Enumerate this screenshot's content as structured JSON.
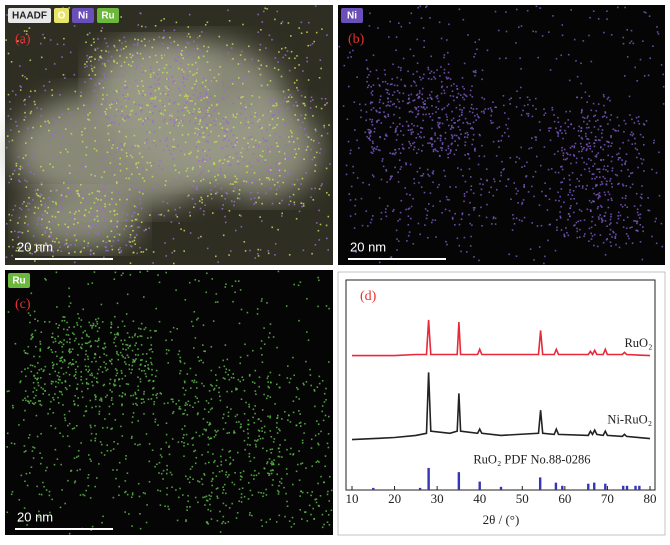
{
  "panels": [
    {
      "label": "(a)",
      "tags": [
        "HAADF",
        "O",
        "Ni",
        "Ru"
      ],
      "scale_bar": "20 nm"
    },
    {
      "label": "(b)",
      "tags": [
        "Ni"
      ],
      "scale_bar": "20 nm"
    },
    {
      "label": "(c)",
      "tags": [
        "Ru"
      ],
      "scale_bar": "20 nm"
    }
  ],
  "chart_data": {
    "type": "line",
    "label": "(d)",
    "xlabel": "2θ / (°)",
    "xlim": [
      10,
      80
    ],
    "xticks": [
      10,
      20,
      30,
      40,
      50,
      60,
      70,
      80
    ],
    "ylim": [
      0,
      100
    ],
    "x": [
      10,
      15,
      20,
      25,
      27.5,
      28,
      28.5,
      33,
      34.7,
      35.1,
      35.5,
      39.5,
      40,
      40.5,
      45,
      53.8,
      54.3,
      54.8,
      57.5,
      58,
      58.5,
      65.5,
      66,
      66.5,
      67,
      67.5,
      69,
      69.5,
      70,
      73.5,
      74,
      74.5,
      80
    ],
    "series": [
      {
        "name": "RuO₂",
        "color": "#e8293a",
        "values": [
          64,
          64,
          64,
          64.5,
          64.5,
          81,
          64.5,
          64.5,
          64.5,
          80,
          64.5,
          64.5,
          67,
          64.5,
          64.5,
          64.5,
          76,
          64.5,
          64.5,
          67,
          64.5,
          64.5,
          66,
          64.5,
          66.5,
          64.5,
          64.5,
          67,
          64.5,
          64.5,
          65.5,
          64.5,
          64
        ]
      },
      {
        "name": "Ni-RuO₂",
        "color": "#222222",
        "values": [
          24,
          24.5,
          25,
          26,
          27,
          56,
          28,
          27,
          28,
          46,
          28,
          27,
          29,
          27,
          26,
          27,
          38,
          27,
          26.5,
          29,
          26.5,
          26,
          28,
          26.5,
          28.5,
          26.5,
          26,
          28,
          26,
          25.5,
          26.5,
          25.5,
          24.5
        ]
      }
    ],
    "reference": {
      "name": "RuO₂ PDF No.88-0286",
      "color": "#3535b5",
      "x": [
        15,
        26,
        28,
        35.1,
        40,
        45,
        54.2,
        57.9,
        59.4,
        65.5,
        66.9,
        69.5,
        73.7,
        74.6,
        76.6,
        77.5
      ],
      "values": [
        1,
        1,
        10.5,
        8.5,
        4,
        1.5,
        6,
        3.5,
        2,
        3,
        3.5,
        3,
        2,
        2,
        2,
        2
      ]
    }
  }
}
